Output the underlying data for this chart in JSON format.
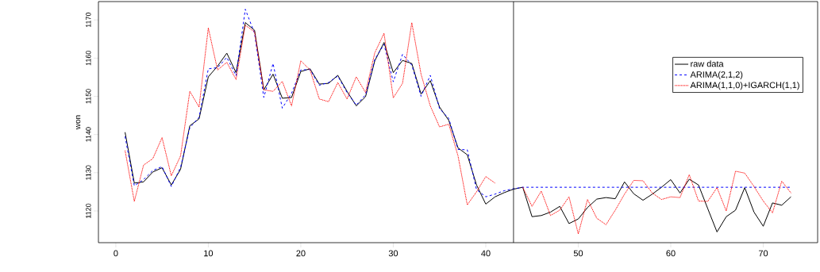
{
  "chart_data": {
    "type": "line",
    "ylabel": "won",
    "x": [
      1,
      2,
      3,
      4,
      5,
      6,
      7,
      8,
      9,
      10,
      11,
      12,
      13,
      14,
      15,
      16,
      17,
      18,
      19,
      20,
      21,
      22,
      23,
      24,
      25,
      26,
      27,
      28,
      29,
      30,
      31,
      32,
      33,
      34,
      35,
      36,
      37,
      38,
      39,
      40,
      41,
      42,
      43,
      44,
      45,
      46,
      47,
      48,
      49,
      50,
      51,
      52,
      53,
      54,
      55,
      56,
      57,
      58,
      59,
      60,
      61,
      62,
      63,
      64,
      65,
      66,
      67,
      68,
      69,
      70,
      71,
      72,
      73
    ],
    "series": [
      {
        "name": "raw data",
        "color": "#000000",
        "line_style": "solid",
        "values": [
          1140.6,
          1127.3,
          1127.6,
          1130.2,
          1131.3,
          1126.8,
          1130.9,
          1142.3,
          1144.1,
          1155.1,
          1157.9,
          1161.3,
          1156.2,
          1169.3,
          1167.3,
          1151.7,
          1155.8,
          1149.5,
          1149.7,
          1156.5,
          1157.2,
          1153.2,
          1153.4,
          1155.5,
          1151.3,
          1147.5,
          1149.9,
          1159.3,
          1164.1,
          1156.2,
          1159.4,
          1158.6,
          1150.6,
          1154.1,
          1147.2,
          1143.7,
          1136.5,
          1134.7,
          1126.8,
          1121.8,
          1123.7,
          1124.8,
          1125.7,
          1126.2,
          1118.5,
          1118.8,
          1119.7,
          1121.2,
          1116.7,
          1117.9,
          1120.9,
          1123.1,
          1123.5,
          1123.2,
          1127.6,
          1124.5,
          1122.8,
          1124.4,
          1126.2,
          1128.2,
          1124.7,
          1128.3,
          1126.8,
          1120.6,
          1114.5,
          1118.5,
          1120.2,
          1126.1,
          1119.7,
          1116.0,
          1122.1,
          1121.5,
          1123.7
        ]
      },
      {
        "name": "ARIMA(2,1,2)",
        "color": "#0000ff",
        "line_style": "dashed",
        "values": [
          1139.5,
          1126.6,
          1128.2,
          1130.6,
          1131.6,
          1126.4,
          1131.4,
          1141.8,
          1144.5,
          1157.2,
          1157.5,
          1160.2,
          1155.4,
          1172.8,
          1166.5,
          1149.7,
          1158.6,
          1146.9,
          1150.8,
          1156.9,
          1157.0,
          1152.9,
          1153.6,
          1155.3,
          1151.0,
          1147.7,
          1150.4,
          1159.7,
          1163.6,
          1153.8,
          1161.0,
          1158.2,
          1150.0,
          1155.5,
          1146.8,
          1144.2,
          1136.1,
          1136.0,
          1125.6,
          1123.7,
          1124.4,
          1125.3,
          1125.8,
          1126.2,
          1126.2,
          1126.2,
          1126.2,
          1126.2,
          1126.2,
          1126.2,
          1126.2,
          1126.2,
          1126.2,
          1126.2,
          1126.2,
          1126.2,
          1126.2,
          1126.2,
          1126.2,
          1126.2,
          1126.2,
          1126.2,
          1126.2,
          1126.2,
          1126.2,
          1126.2,
          1126.2,
          1126.2,
          1126.2,
          1126.2,
          1126.2,
          1126.2,
          1126.2
        ]
      },
      {
        "name": "ARIMA(1,1,0)+IGARCH(1,1)",
        "color": "#ff0000",
        "line_style": "dotted",
        "values": [
          1135.8,
          1122.5,
          1132.0,
          1133.7,
          1139.2,
          1129.2,
          1134.4,
          1151.3,
          1147.2,
          1167.9,
          1156.9,
          1158.9,
          1154.4,
          1168.6,
          1166.9,
          1151.7,
          1151.3,
          1153.9,
          1147.5,
          1159.3,
          1156.9,
          1149.3,
          1148.6,
          1153.6,
          1149.3,
          1155.1,
          1151.0,
          1161.4,
          1166.5,
          1149.6,
          1153.4,
          1169.3,
          1155.8,
          1147.5,
          1142.0,
          1142.7,
          1134.4,
          1121.6,
          1125.0,
          1129.0,
          1127.3,
          null,
          null,
          1126.2,
          1121.2,
          1125.2,
          1118.8,
          1120.2,
          1123.7,
          1114.0,
          1123.0,
          1118.1,
          1116.4,
          1120.2,
          1124.4,
          1128.0,
          1127.9,
          1124.7,
          1123.0,
          1123.7,
          1123.5,
          1129.5,
          1122.6,
          1122.5,
          1126.1,
          1120.0,
          1130.4,
          1129.9,
          1126.4,
          1122.6,
          1119.5,
          1127.8,
          1124.7
        ]
      }
    ],
    "xlim": [
      -1.88,
      75.88
    ],
    "ylim": [
      1111.7,
      1174.8
    ],
    "xticks": [
      0,
      10,
      20,
      30,
      40,
      50,
      60,
      70
    ],
    "yticks": [
      1120,
      1130,
      1140,
      1150,
      1160,
      1170
    ],
    "ref_lines": [
      {
        "axis": "x",
        "value": 43,
        "color": "#000000"
      }
    ],
    "legend": "top right"
  }
}
